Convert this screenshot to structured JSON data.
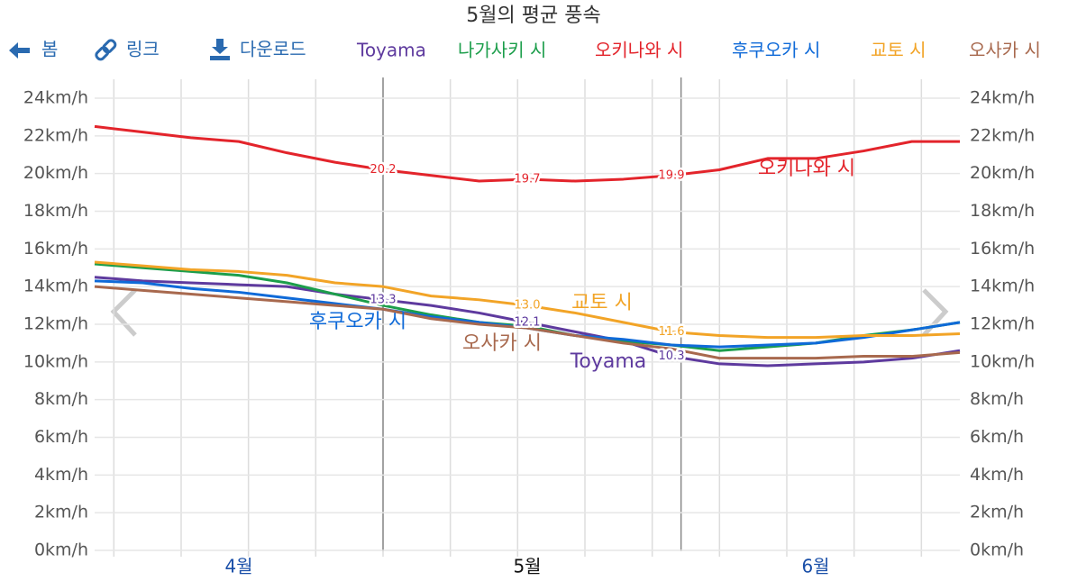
{
  "toolbar": {
    "back": "봄",
    "link": "링크",
    "download": "다운로드"
  },
  "chart_data": {
    "type": "line",
    "title": "5월의 평균 풍속",
    "categories": [
      null,
      null,
      null,
      "4월",
      null,
      null,
      null,
      null,
      null,
      "5월",
      null,
      null,
      null,
      null,
      null,
      "6월",
      null,
      null,
      null
    ],
    "ylim": [
      0,
      24
    ],
    "yticks": [
      {
        "value": 0,
        "label": "0km/h"
      },
      {
        "value": 2,
        "label": "2km/h"
      },
      {
        "value": 4,
        "label": "4km/h"
      },
      {
        "value": 6,
        "label": "6km/h"
      },
      {
        "value": 8,
        "label": "8km/h"
      },
      {
        "value": 10,
        "label": "10km/h"
      },
      {
        "value": 12,
        "label": "12km/h"
      },
      {
        "value": 14,
        "label": "14km/h"
      },
      {
        "value": 16,
        "label": "16km/h"
      },
      {
        "value": 18,
        "label": "18km/h"
      },
      {
        "value": 20,
        "label": "20km/h"
      },
      {
        "value": 22,
        "label": "22km/h"
      },
      {
        "value": 24,
        "label": "24km/h"
      }
    ],
    "grid": true,
    "series": [
      {
        "name": "Toyama",
        "color": "#5e3a9e",
        "values": [
          14.5,
          14.3,
          14.2,
          14.1,
          14.0,
          13.6,
          13.3,
          13.0,
          12.6,
          12.1,
          11.6,
          11.1,
          10.3,
          9.9,
          9.8,
          9.9,
          10.0,
          10.2,
          10.6
        ],
        "value_labels": [
          null,
          null,
          null,
          null,
          null,
          null,
          "13.3",
          null,
          null,
          "12.1",
          null,
          null,
          "10.3",
          null,
          null,
          null,
          null,
          null,
          null
        ]
      },
      {
        "name": "나가사키 시",
        "color": "#1c9e4b",
        "values": [
          15.2,
          15.0,
          14.8,
          14.6,
          14.2,
          13.6,
          13.0,
          12.5,
          12.1,
          11.9,
          11.4,
          11.1,
          10.9,
          10.6,
          10.8,
          11.0,
          11.4,
          11.7,
          12.1
        ]
      },
      {
        "name": "오키나와 시",
        "color": "#e3242b",
        "values": [
          22.5,
          22.2,
          21.9,
          21.7,
          21.1,
          20.6,
          20.2,
          19.9,
          19.6,
          19.7,
          19.6,
          19.7,
          19.9,
          20.2,
          20.8,
          20.8,
          21.2,
          21.7,
          21.7
        ],
        "value_labels": [
          null,
          null,
          null,
          null,
          null,
          null,
          "20.2",
          null,
          null,
          "19.7",
          null,
          null,
          "19.9",
          null,
          null,
          null,
          null,
          null,
          null
        ]
      },
      {
        "name": "후쿠오카 시",
        "color": "#0f6ad8",
        "values": [
          14.3,
          14.2,
          13.9,
          13.7,
          13.4,
          13.1,
          12.8,
          12.4,
          12.1,
          11.8,
          11.4,
          11.2,
          10.9,
          10.8,
          10.9,
          11.0,
          11.3,
          11.7,
          12.1
        ]
      },
      {
        "name": "교토 시",
        "color": "#f2a427",
        "values": [
          15.3,
          15.1,
          14.9,
          14.8,
          14.6,
          14.2,
          14.0,
          13.5,
          13.3,
          13.0,
          12.6,
          12.1,
          11.6,
          11.4,
          11.3,
          11.3,
          11.4,
          11.4,
          11.5
        ],
        "value_labels": [
          null,
          null,
          null,
          null,
          null,
          null,
          null,
          null,
          null,
          "13.0",
          null,
          null,
          "11.6",
          null,
          null,
          null,
          null,
          null,
          null
        ]
      },
      {
        "name": "오사카 시",
        "color": "#a8694e",
        "values": [
          14.0,
          13.8,
          13.6,
          13.4,
          13.2,
          13.0,
          12.8,
          12.3,
          12.0,
          11.8,
          11.4,
          11.0,
          10.7,
          10.2,
          10.2,
          10.2,
          10.3,
          10.3,
          10.5
        ]
      }
    ]
  }
}
